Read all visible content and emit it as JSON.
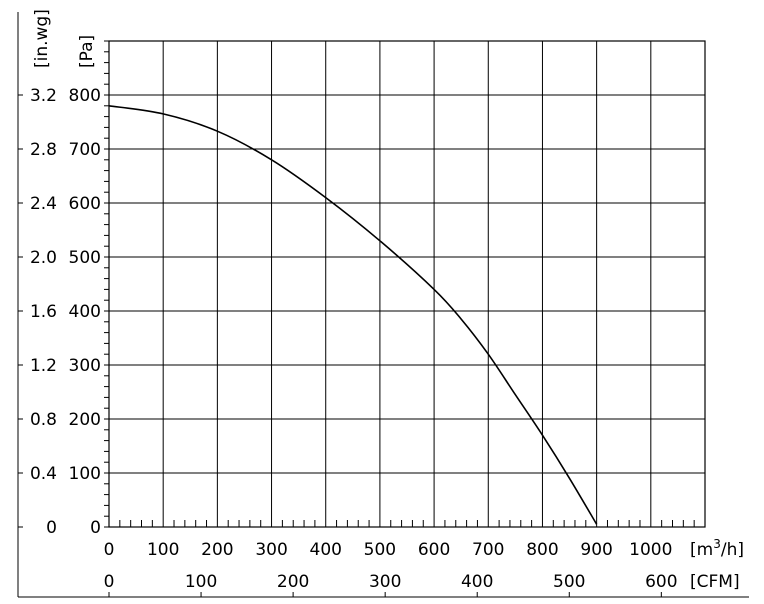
{
  "chart_data": {
    "type": "line",
    "title": "",
    "x_axis": {
      "unit_label": "[m³/h]",
      "unit_base": "[m",
      "unit_sup": "3",
      "unit_tail": "/h]",
      "range": [
        0,
        1100
      ],
      "ticks": [
        0,
        100,
        200,
        300,
        400,
        500,
        600,
        700,
        800,
        900,
        1000
      ],
      "tick_labels": [
        "0",
        "100",
        "200",
        "300",
        "400",
        "500",
        "600",
        "700",
        "800",
        "900",
        "1000"
      ]
    },
    "x_axis_secondary": {
      "unit_label": "[CFM]",
      "ticks": [
        0,
        100,
        200,
        300,
        400,
        500,
        600
      ],
      "tick_labels": [
        "0",
        "100",
        "200",
        "300",
        "400",
        "500",
        "600"
      ],
      "m3h_per_cfm": 1.699
    },
    "y_axis": {
      "unit_label": "[Pa]",
      "range": [
        0,
        900
      ],
      "ticks": [
        0,
        100,
        200,
        300,
        400,
        500,
        600,
        700,
        800
      ],
      "tick_labels": [
        "0",
        "100",
        "200",
        "300",
        "400",
        "500",
        "600",
        "700",
        "800"
      ]
    },
    "y_axis_secondary": {
      "unit_label": "[in.wg]",
      "ticks": [
        0,
        0.4,
        0.8,
        1.2,
        1.6,
        2.0,
        2.4,
        2.8,
        3.2
      ],
      "tick_labels": [
        "0",
        "0.4",
        "0.8",
        "1.2",
        "1.6",
        "2.0",
        "2.4",
        "2.8",
        "3.2"
      ],
      "pa_per_inwg": 249.1
    },
    "grid": true,
    "series": [
      {
        "name": "",
        "color": "#000000",
        "x": [
          0,
          100,
          200,
          300,
          400,
          500,
          600,
          650,
          700,
          750,
          800,
          850,
          900
        ],
        "y": [
          780,
          765,
          733,
          680,
          610,
          530,
          440,
          385,
          320,
          245,
          170,
          90,
          5
        ]
      }
    ]
  }
}
